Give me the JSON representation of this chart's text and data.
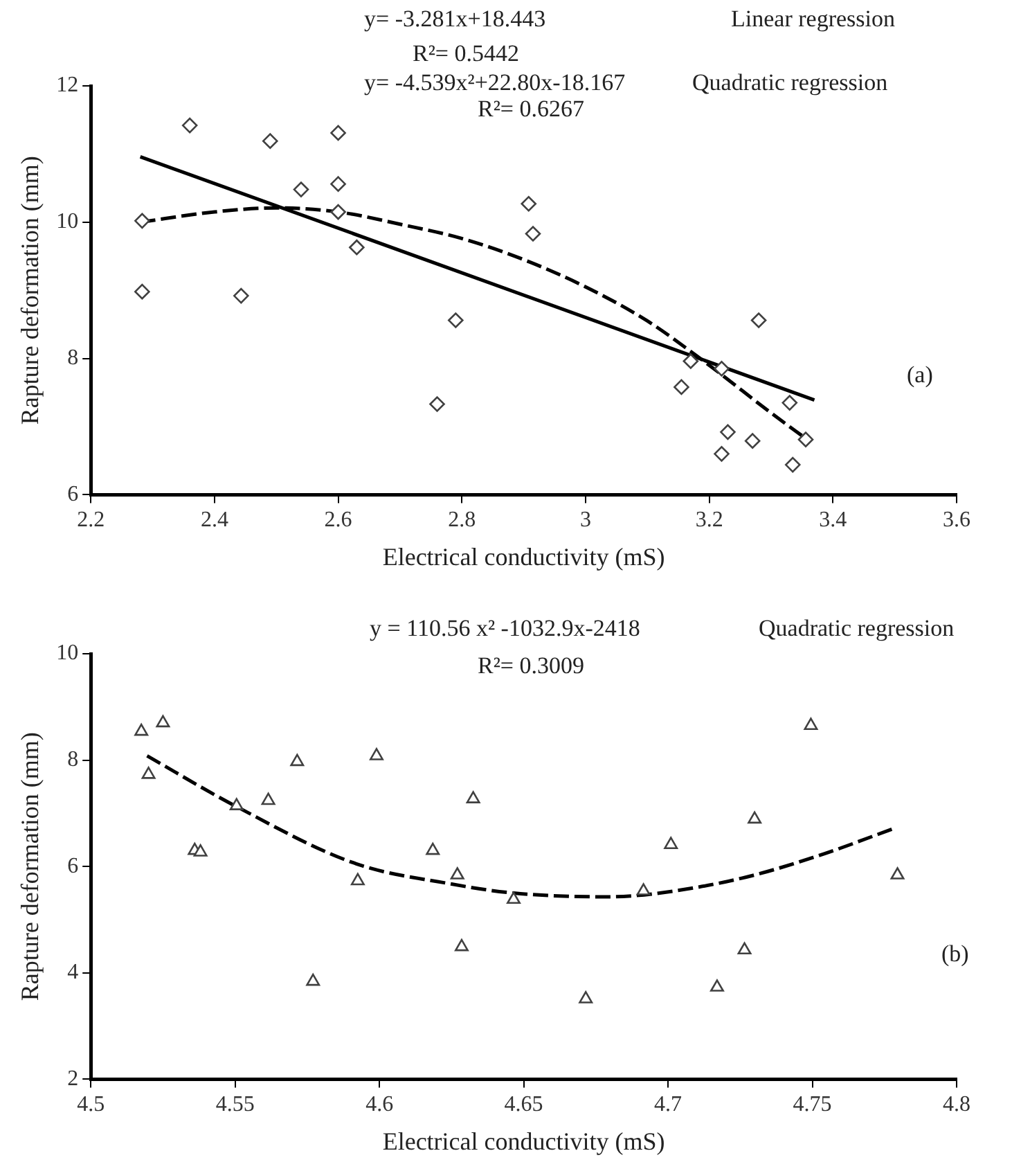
{
  "chart_data": [
    {
      "type": "scatter",
      "xlabel": "Electrical conductivity (mS)",
      "ylabel": "Rapture deformation (mm)",
      "xlim": [
        2.2,
        3.6
      ],
      "xticks": [
        2.2,
        2.4,
        2.6,
        2.8,
        3,
        3.2,
        3.4,
        3.6
      ],
      "ylim": [
        6,
        12
      ],
      "yticks": [
        6,
        8,
        10,
        12
      ],
      "grid": false,
      "legend": false,
      "marker": "diamond",
      "annotations": [
        "y= -3.281x+18.443",
        "R²= 0.5442",
        "y= -4.539x²+22.80x-18.167",
        "R²= 0.6267",
        "Linear regression",
        "Quadratic regression",
        "(a)"
      ],
      "series": [
        {
          "color": "#404040",
          "x": [
            2.283,
            2.283,
            2.36,
            2.443,
            2.49,
            2.54,
            2.6,
            2.6,
            2.6,
            2.63,
            2.79,
            2.76,
            2.908,
            2.915,
            3.28,
            3.17,
            3.22,
            3.155,
            3.33,
            3.23,
            3.27,
            3.22,
            3.356,
            3.335
          ],
          "values": [
            10.02,
            8.98,
            11.42,
            8.92,
            11.19,
            10.48,
            11.31,
            10.56,
            10.15,
            9.63,
            8.56,
            7.33,
            10.27,
            9.83,
            8.56,
            7.96,
            7.85,
            7.58,
            7.35,
            6.92,
            6.79,
            6.6,
            6.81,
            6.44
          ]
        },
        {
          "type": "line",
          "marker": "none",
          "color": "#000000",
          "line_style": "solid",
          "x": [
            2.28,
            3.37
          ],
          "values": [
            10.96,
            7.39
          ]
        },
        {
          "type": "line",
          "marker": "none",
          "color": "#000000",
          "line_style": "dashed",
          "x": [
            2.28,
            2.4,
            2.5,
            2.6,
            2.7,
            2.8,
            2.9,
            3.0,
            3.1,
            3.2,
            3.3,
            3.36
          ],
          "values": [
            10.0,
            10.15,
            10.21,
            10.15,
            9.97,
            9.76,
            9.45,
            9.05,
            8.55,
            7.9,
            7.2,
            6.8
          ]
        }
      ]
    },
    {
      "type": "scatter",
      "xlabel": "Electrical conductivity (mS)",
      "ylabel": "Rapture deformation (mm)",
      "xlim": [
        4.5,
        4.8
      ],
      "xticks": [
        4.5,
        4.55,
        4.6,
        4.65,
        4.7,
        4.75,
        4.8
      ],
      "ylim": [
        2,
        10
      ],
      "yticks": [
        2,
        4,
        6,
        8,
        10
      ],
      "grid": false,
      "legend": false,
      "marker": "triangle",
      "annotations": [
        "y = 110.56 x² -1032.9x-2418",
        "Quadratic regression",
        "R²= 0.3009",
        "(b)"
      ],
      "series": [
        {
          "color": "#404040",
          "x": [
            4.5175,
            4.52,
            4.525,
            4.536,
            4.538,
            4.5505,
            4.5615,
            4.5715,
            4.577,
            4.5925,
            4.599,
            4.6185,
            4.627,
            4.6325,
            4.6285,
            4.6465,
            4.6715,
            4.6915,
            4.701,
            4.717,
            4.7265,
            4.73,
            4.7495,
            4.7795
          ],
          "values": [
            8.54,
            7.73,
            8.7,
            6.3,
            6.27,
            7.14,
            7.24,
            7.97,
            3.84,
            5.73,
            8.08,
            6.3,
            5.84,
            7.27,
            4.49,
            5.38,
            3.51,
            5.54,
            6.41,
            3.73,
            4.43,
            6.89,
            8.65,
            5.84
          ]
        },
        {
          "type": "line",
          "marker": "none",
          "color": "#000000",
          "line_style": "dashed",
          "x": [
            4.5195,
            4.55,
            4.592,
            4.624,
            4.6465,
            4.679,
            4.6955,
            4.7255,
            4.752,
            4.779
          ],
          "values": [
            8.08,
            7.14,
            6.05,
            5.68,
            5.5,
            5.43,
            5.49,
            5.78,
            6.2,
            6.73
          ]
        }
      ]
    }
  ]
}
